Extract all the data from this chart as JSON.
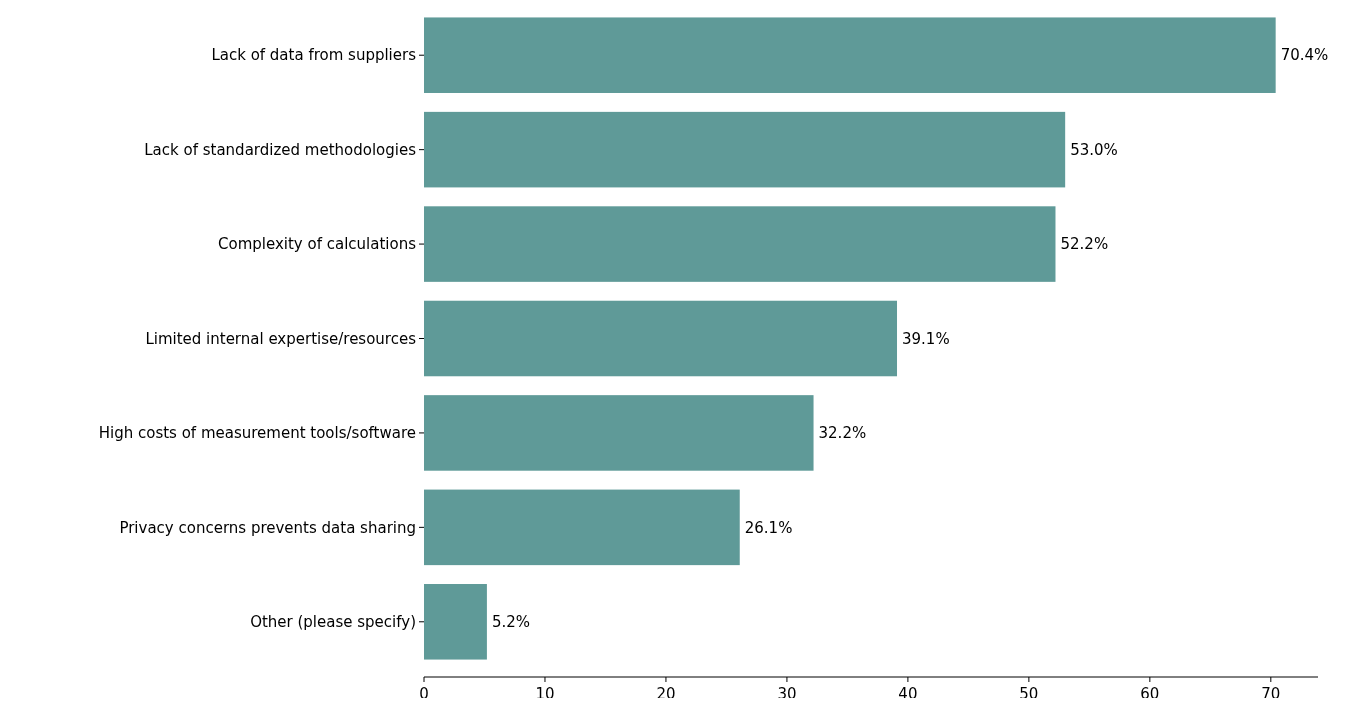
{
  "chart_data": {
    "type": "bar",
    "orientation": "horizontal",
    "categories": [
      "Lack of data from suppliers",
      "Lack of standardized methodologies",
      "Complexity of calculations",
      "Limited internal expertise/resources",
      "High costs of measurement tools/software",
      "Privacy concerns prevents data sharing",
      "Other (please specify)"
    ],
    "values": [
      70.4,
      53.0,
      52.2,
      39.1,
      32.2,
      26.1,
      5.2
    ],
    "value_labels": [
      "70.4%",
      "53.0%",
      "52.2%",
      "39.1%",
      "32.2%",
      "26.1%",
      "5.2%"
    ],
    "color": "#5f9a98",
    "xlim": [
      0,
      73.9
    ],
    "xticks": [
      0,
      10,
      20,
      30,
      40,
      50,
      60,
      70
    ],
    "grid": false
  }
}
